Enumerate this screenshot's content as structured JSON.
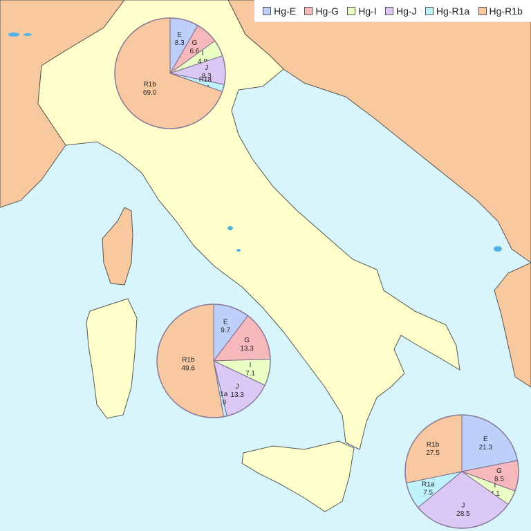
{
  "legend": [
    {
      "label": "Hg-E",
      "color": "#bdd0fa"
    },
    {
      "label": "Hg-G",
      "color": "#f7b8bc"
    },
    {
      "label": "Hg-I",
      "color": "#eaffc4"
    },
    {
      "label": "Hg-J",
      "color": "#dcc8f5"
    },
    {
      "label": "Hg-R1a",
      "color": "#bff3fb"
    },
    {
      "label": "Hg-R1b",
      "color": "#f8c9a0"
    }
  ],
  "colors": {
    "sea": "#d7f5fa",
    "italy": "#ffffcc",
    "neighbors": "#f8c89e",
    "border": "#555555",
    "lake": "#4fb3e8"
  },
  "chart_data": [
    {
      "type": "pie",
      "region": "north",
      "slices": [
        {
          "label": "E",
          "value": 8.3,
          "color": "#bdd0fa"
        },
        {
          "label": "G",
          "value": 6.6,
          "color": "#f7b8bc"
        },
        {
          "label": "I",
          "value": 4.8,
          "color": "#eaffc4"
        },
        {
          "label": "J",
          "value": 8.3,
          "color": "#dcc8f5"
        },
        {
          "label": "R1a",
          "value": 2.1,
          "color": "#bff3fb"
        },
        {
          "label": "R1b",
          "value": 69.0,
          "color": "#f8c9a0"
        }
      ],
      "display": [
        "8.3",
        "6.6",
        "4.8",
        "8.3",
        "2.1",
        "69.0"
      ]
    },
    {
      "type": "pie",
      "region": "central",
      "slices": [
        {
          "label": "E",
          "value": 9.7,
          "color": "#bdd0fa"
        },
        {
          "label": "G",
          "value": 13.3,
          "color": "#f7b8bc"
        },
        {
          "label": "I",
          "value": 7.1,
          "color": "#eaffc4"
        },
        {
          "label": "J",
          "value": 13.3,
          "color": "#dcc8f5"
        },
        {
          "label": "R1a",
          "value": 0.9,
          "color": "#bff3fb"
        },
        {
          "label": "R1b",
          "value": 49.6,
          "color": "#f8c9a0"
        }
      ],
      "display": [
        "9.7",
        "13.3",
        "7.1",
        "13.3",
        "0.9",
        "49.6"
      ]
    },
    {
      "type": "pie",
      "region": "south",
      "slices": [
        {
          "label": "E",
          "value": 21.3,
          "color": "#bdd0fa"
        },
        {
          "label": "G",
          "value": 8.5,
          "color": "#f7b8bc"
        },
        {
          "label": "I",
          "value": 4.1,
          "color": "#eaffc4"
        },
        {
          "label": "J",
          "value": 28.5,
          "color": "#dcc8f5"
        },
        {
          "label": "R1a",
          "value": 7.5,
          "color": "#bff3fb"
        },
        {
          "label": "R1b",
          "value": 27.5,
          "color": "#f8c9a0"
        }
      ],
      "display": [
        "21.3",
        "8.5",
        "4.1",
        "28.5",
        "7.5",
        "27.5"
      ]
    }
  ]
}
